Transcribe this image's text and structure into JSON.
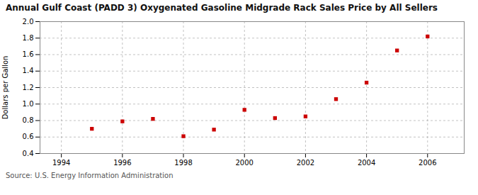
{
  "chart_data": {
    "type": "scatter",
    "title": "Annual Gulf Coast (PADD 3) Oxygenated Gasoline Midgrade Rack Sales Price by All Sellers",
    "ylabel": "Dollars per Gallon",
    "source": "Source: U.S. Energy Information Administration",
    "x": [
      1995,
      1996,
      1997,
      1998,
      1999,
      2000,
      2001,
      2002,
      2003,
      2004,
      2005,
      2006
    ],
    "values": [
      0.7,
      0.79,
      0.82,
      0.61,
      0.69,
      0.93,
      0.83,
      0.85,
      1.06,
      1.26,
      1.65,
      1.82
    ],
    "color": "#cc0000",
    "marker": "square",
    "xlim": [
      1993.3,
      2007.2
    ],
    "ylim": [
      0.4,
      2.0
    ],
    "xticks": [
      1994,
      1996,
      1998,
      2000,
      2002,
      2004,
      2006
    ],
    "yticks": [
      0.4,
      0.6,
      0.8,
      {
        "value": 1.0,
        "label": "1.0"
      },
      1.2,
      1.4,
      1.6,
      1.8,
      {
        "value": 2.0,
        "label": "2.0"
      }
    ],
    "grid": true
  }
}
